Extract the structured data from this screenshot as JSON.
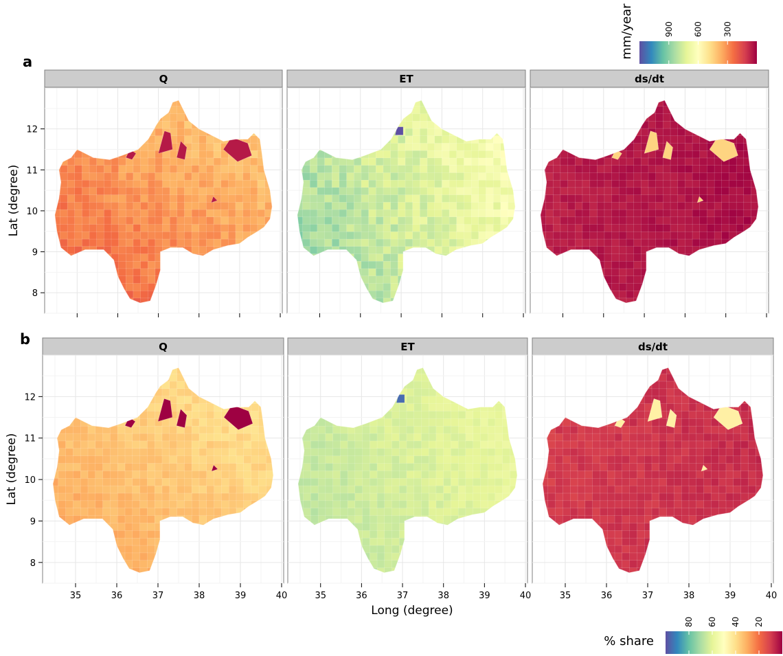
{
  "figure": {
    "row_labels": [
      "a",
      "b"
    ]
  },
  "chart_data": [
    {
      "type": "heatmap",
      "panel_label": "a",
      "facets": [
        "Q",
        "ET",
        "ds/dt"
      ],
      "xlabel": "",
      "ylabel": "Lat (degree)",
      "xlim": [
        34.2,
        40.05
      ],
      "ylim": [
        7.5,
        13.0
      ],
      "x_ticks": [
        35,
        36,
        37,
        38,
        39,
        40
      ],
      "y_ticks": [
        8,
        9,
        10,
        11,
        12
      ],
      "colorbar": {
        "title": "mm/year",
        "tick_values": [
          900,
          600,
          300
        ],
        "range": [
          0,
          1200
        ],
        "colors": [
          "#5e4fa2",
          "#3288bd",
          "#66c2a5",
          "#abdda4",
          "#e6f598",
          "#ffffbf",
          "#fee08b",
          "#fdae61",
          "#f46d43",
          "#d53e4f",
          "#9e0142"
        ]
      },
      "facet_summary": {
        "Q": {
          "dominant_value_range": [
            150,
            500
          ],
          "hotspots_value": 50
        },
        "ET": {
          "dominant_value_range": [
            550,
            950
          ],
          "hotspots_value": 1200
        },
        "ds/dt": {
          "dominant_value_range": [
            0,
            120
          ],
          "hotspots_value": 450
        }
      }
    },
    {
      "type": "heatmap",
      "panel_label": "b",
      "facets": [
        "Q",
        "ET",
        "ds/dt"
      ],
      "xlabel": "Long (degree)",
      "ylabel": "Lat (degree)",
      "xlim": [
        34.2,
        40.05
      ],
      "ylim": [
        7.5,
        13.0
      ],
      "x_ticks": [
        35,
        36,
        37,
        38,
        39,
        40
      ],
      "y_ticks": [
        8,
        9,
        10,
        11,
        12
      ],
      "colorbar": {
        "title": "% share",
        "tick_values": [
          80,
          60,
          40,
          20
        ],
        "range": [
          0,
          100
        ],
        "colors": [
          "#5e4fa2",
          "#3288bd",
          "#66c2a5",
          "#abdda4",
          "#e6f598",
          "#ffffbf",
          "#fee08b",
          "#fdae61",
          "#f46d43",
          "#d53e4f",
          "#9e0142"
        ]
      },
      "facet_summary": {
        "Q": {
          "dominant_value_range": [
            25,
            45
          ],
          "hotspots_value": 0
        },
        "ET": {
          "dominant_value_range": [
            55,
            70
          ],
          "hotspots_value": 95
        },
        "ds/dt": {
          "dominant_value_range": [
            5,
            15
          ],
          "hotspots_value": 45
        }
      }
    }
  ]
}
